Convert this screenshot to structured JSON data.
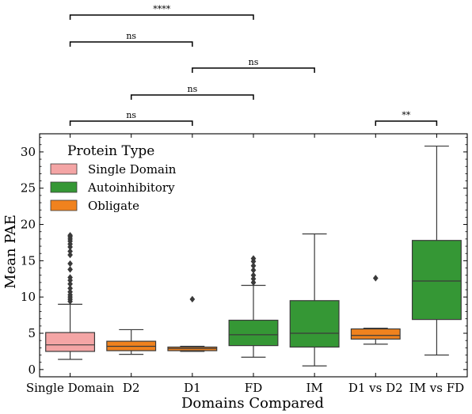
{
  "chart_data": {
    "type": "boxplot",
    "xlabel": "Domains Compared",
    "ylabel": "Mean PAE",
    "ylim": [
      -1,
      32.5
    ],
    "yticks": [
      0,
      5,
      10,
      15,
      20,
      25,
      30
    ],
    "legend": {
      "title": "Protein Type",
      "placement": "upper-left",
      "entries": [
        {
          "label": "Single Domain",
          "color": "#f4a5a5"
        },
        {
          "label": "Autoinhibitory",
          "color": "#359735"
        },
        {
          "label": "Obligate",
          "color": "#f0821e"
        }
      ]
    },
    "boxes": [
      {
        "category": "Single Domain",
        "type": "Single Domain",
        "whisker_low": 1.4,
        "q1": 2.5,
        "median": 3.4,
        "q3": 5.1,
        "whisker_high": 9.0,
        "outliers": [
          9.4,
          9.7,
          10.0,
          10.3,
          10.7,
          11.2,
          11.8,
          12.3,
          12.7,
          13.8,
          14.6,
          15.8,
          16.3,
          16.9,
          17.3,
          17.7,
          18.0,
          18.3,
          18.5
        ]
      },
      {
        "category": "D2",
        "type": "Obligate",
        "whisker_low": 2.1,
        "q1": 2.6,
        "median": 3.2,
        "q3": 3.9,
        "whisker_high": 5.5,
        "outliers": []
      },
      {
        "category": "D1",
        "type": "Obligate",
        "whisker_low": 2.5,
        "q1": 2.6,
        "median": 2.9,
        "q3": 3.1,
        "whisker_high": 3.2,
        "outliers": [
          9.7
        ]
      },
      {
        "category": "FD",
        "type": "Autoinhibitory",
        "whisker_low": 1.7,
        "q1": 3.3,
        "median": 4.8,
        "q3": 6.8,
        "whisker_high": 11.6,
        "outliers": [
          12.0,
          12.5,
          13.0,
          13.7,
          14.3,
          14.9,
          15.3
        ]
      },
      {
        "category": "IM",
        "type": "Autoinhibitory",
        "whisker_low": 0.5,
        "q1": 3.1,
        "median": 5.0,
        "q3": 9.5,
        "whisker_high": 18.7,
        "outliers": []
      },
      {
        "category": "D1 vs D2",
        "type": "Obligate",
        "whisker_low": 3.5,
        "q1": 4.2,
        "median": 4.7,
        "q3": 5.6,
        "whisker_high": 5.7,
        "outliers": [
          12.6
        ]
      },
      {
        "category": "IM vs FD",
        "type": "Autoinhibitory",
        "whisker_low": 2.0,
        "q1": 6.9,
        "median": 12.2,
        "q3": 17.8,
        "whisker_high": 30.8,
        "outliers": []
      }
    ],
    "annotations": [
      {
        "from": "Single Domain",
        "to": "D1",
        "label": "ns",
        "level": 0
      },
      {
        "from": "IM vs FD",
        "to": "D1 vs D2",
        "label": "**",
        "level": 0
      },
      {
        "from": "D2",
        "to": "FD",
        "label": "ns",
        "level": 1
      },
      {
        "from": "D1",
        "to": "IM",
        "label": "ns",
        "level": 2
      },
      {
        "from": "Single Domain",
        "to": "D1",
        "label": "ns",
        "level": 3
      },
      {
        "from": "Single Domain",
        "to": "FD",
        "label": "****",
        "level": 4
      }
    ]
  }
}
